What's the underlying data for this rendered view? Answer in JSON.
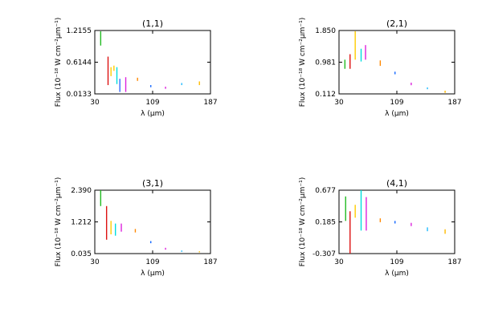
{
  "chart_data": [
    {
      "type": "scatter",
      "title": "(1,1)",
      "xlabel": "λ (μm)",
      "ylabel": "Flux (10⁻¹⁸ W cm⁻²μm⁻¹)",
      "xlim": [
        30,
        187
      ],
      "ylim": [
        0.0133,
        1.2155
      ],
      "xticks": [
        "30",
        "109",
        "187"
      ],
      "yticks": [
        "0.0133",
        "0.6144",
        "1.2155"
      ],
      "segments": [
        {
          "x": 38,
          "y0": 0.93,
          "y1": 1.2,
          "color": "#22bb22"
        },
        {
          "x": 48,
          "y0": 0.18,
          "y1": 0.72,
          "color": "#dd1111"
        },
        {
          "x": 52,
          "y0": 0.35,
          "y1": 0.52,
          "color": "#ffcc00"
        },
        {
          "x": 56,
          "y0": 0.45,
          "y1": 0.55,
          "color": "#ffcc00"
        },
        {
          "x": 60,
          "y0": 0.2,
          "y1": 0.52,
          "color": "#00dddd"
        },
        {
          "x": 64,
          "y0": 0.05,
          "y1": 0.3,
          "color": "#3366ff"
        },
        {
          "x": 72,
          "y0": 0.05,
          "y1": 0.33,
          "color": "#dd22dd"
        },
        {
          "x": 88,
          "y0": 0.26,
          "y1": 0.32,
          "color": "#ff8800"
        },
        {
          "x": 106,
          "y0": 0.14,
          "y1": 0.18,
          "color": "#1166ff"
        },
        {
          "x": 126,
          "y0": 0.11,
          "y1": 0.15,
          "color": "#dd22dd"
        },
        {
          "x": 148,
          "y0": 0.18,
          "y1": 0.22,
          "color": "#22bbff"
        },
        {
          "x": 172,
          "y0": 0.18,
          "y1": 0.25,
          "color": "#ffbb00"
        }
      ]
    },
    {
      "type": "scatter",
      "title": "(2,1)",
      "xlabel": "λ (μm)",
      "ylabel": "Flux (10⁻¹⁸ W cm⁻²μm⁻¹)",
      "xlim": [
        30,
        187
      ],
      "ylim": [
        0.112,
        1.85
      ],
      "xticks": [
        "30",
        "109",
        "187"
      ],
      "yticks": [
        "0.112",
        "0.981",
        "1.850"
      ],
      "segments": [
        {
          "x": 38,
          "y0": 0.8,
          "y1": 1.05,
          "color": "#22bb22"
        },
        {
          "x": 45,
          "y0": 0.8,
          "y1": 1.2,
          "color": "#dd1111"
        },
        {
          "x": 52,
          "y0": 1.05,
          "y1": 1.83,
          "color": "#ffcc00"
        },
        {
          "x": 60,
          "y0": 1.0,
          "y1": 1.35,
          "color": "#00dddd"
        },
        {
          "x": 66,
          "y0": 1.05,
          "y1": 1.45,
          "color": "#dd22dd"
        },
        {
          "x": 86,
          "y0": 0.88,
          "y1": 1.03,
          "color": "#ff8800"
        },
        {
          "x": 106,
          "y0": 0.65,
          "y1": 0.72,
          "color": "#1166ff"
        },
        {
          "x": 128,
          "y0": 0.35,
          "y1": 0.42,
          "color": "#dd22dd"
        },
        {
          "x": 150,
          "y0": 0.24,
          "y1": 0.29,
          "color": "#22bbff"
        },
        {
          "x": 174,
          "y0": 0.14,
          "y1": 0.2,
          "color": "#ffbb00"
        }
      ]
    },
    {
      "type": "scatter",
      "title": "(3,1)",
      "xlabel": "λ (μm)",
      "ylabel": "Flux (10⁻¹⁸ W cm⁻²μm⁻¹)",
      "xlim": [
        30,
        187
      ],
      "ylim": [
        0.035,
        2.39
      ],
      "xticks": [
        "30",
        "109",
        "187"
      ],
      "yticks": [
        "0.035",
        "1.212",
        "2.390"
      ],
      "segments": [
        {
          "x": 38,
          "y0": 1.8,
          "y1": 2.4,
          "color": "#22bb22"
        },
        {
          "x": 46,
          "y0": 0.55,
          "y1": 1.8,
          "color": "#dd1111"
        },
        {
          "x": 52,
          "y0": 0.75,
          "y1": 1.25,
          "color": "#ffcc00"
        },
        {
          "x": 58,
          "y0": 0.7,
          "y1": 1.15,
          "color": "#00dddd"
        },
        {
          "x": 66,
          "y0": 0.85,
          "y1": 1.15,
          "color": "#dd22dd"
        },
        {
          "x": 85,
          "y0": 0.82,
          "y1": 0.95,
          "color": "#ff8800"
        },
        {
          "x": 106,
          "y0": 0.42,
          "y1": 0.5,
          "color": "#1166ff"
        },
        {
          "x": 126,
          "y0": 0.18,
          "y1": 0.25,
          "color": "#dd22dd"
        },
        {
          "x": 148,
          "y0": 0.1,
          "y1": 0.15,
          "color": "#22bbff"
        },
        {
          "x": 172,
          "y0": 0.08,
          "y1": 0.12,
          "color": "#ffbb00"
        }
      ]
    },
    {
      "type": "scatter",
      "title": "(4,1)",
      "xlabel": "λ (μm)",
      "ylabel": "Flux (10⁻¹⁸ W cm⁻²μm⁻¹)",
      "xlim": [
        30,
        187
      ],
      "ylim": [
        -0.307,
        0.677
      ],
      "xticks": [
        "30",
        "109",
        "187"
      ],
      "yticks": [
        "-0.307",
        "0.185",
        "0.677"
      ],
      "segments": [
        {
          "x": 39,
          "y0": 0.2,
          "y1": 0.58,
          "color": "#22bb22"
        },
        {
          "x": 45,
          "y0": -0.32,
          "y1": 0.35,
          "color": "#dd1111"
        },
        {
          "x": 52,
          "y0": 0.25,
          "y1": 0.45,
          "color": "#ffcc00"
        },
        {
          "x": 60,
          "y0": 0.05,
          "y1": 0.68,
          "color": "#00dddd"
        },
        {
          "x": 67,
          "y0": 0.05,
          "y1": 0.57,
          "color": "#dd22dd"
        },
        {
          "x": 86,
          "y0": 0.18,
          "y1": 0.24,
          "color": "#ff8800"
        },
        {
          "x": 106,
          "y0": 0.16,
          "y1": 0.2,
          "color": "#1166ff"
        },
        {
          "x": 128,
          "y0": 0.12,
          "y1": 0.17,
          "color": "#dd22dd"
        },
        {
          "x": 150,
          "y0": 0.04,
          "y1": 0.1,
          "color": "#22bbff"
        },
        {
          "x": 174,
          "y0": 0.0,
          "y1": 0.07,
          "color": "#ffbb00"
        }
      ]
    }
  ]
}
